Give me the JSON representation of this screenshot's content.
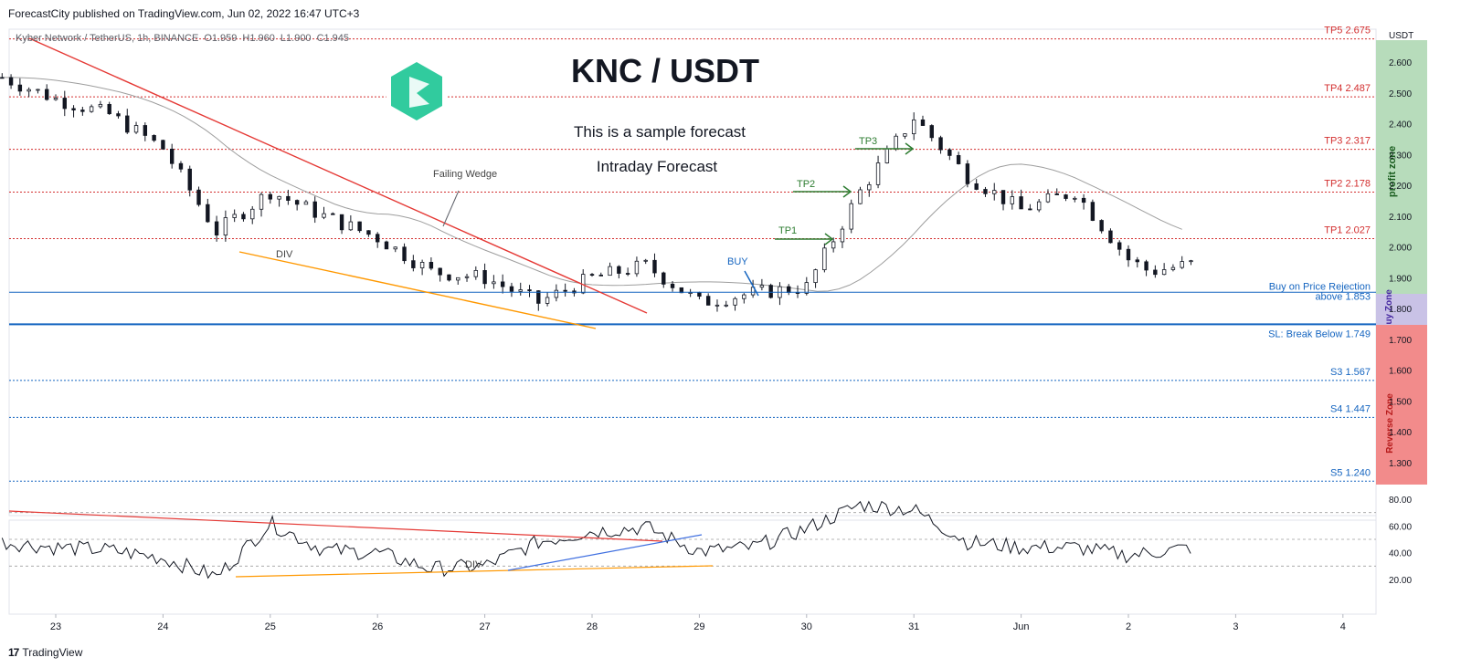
{
  "header": {
    "publisher": "ForecastCity published on TradingView.com, Jun 02, 2022 16:47 UTC+3",
    "symbol_line": "Kyber Network / TetherUS, 1h, BINANCE",
    "ohlc": {
      "o": "O1.959",
      "h": "H1.960",
      "l": "L1.900",
      "c": "C1.945"
    }
  },
  "footer": {
    "brand": "TradingView",
    "logo_glyph": "17"
  },
  "chart_title": "KNC / USDT",
  "subtitle_1": "This is a sample forecast",
  "subtitle_2": "Intraday Forecast",
  "currency": "USDT",
  "colors": {
    "up": "#26a69a",
    "down": "#ef5350",
    "candle": "#131722",
    "tp": "#d32f2f",
    "entry": "#1565c0",
    "profit_zone": "#b7dcbb",
    "buy_zone": "#c9c2e6",
    "reverse_zone": "#f28b8b",
    "wedge_upper": "#e53935",
    "wedge_lower": "#ff9800",
    "arrow": "#2e7d32",
    "rsi": "#131722",
    "logo": "#31cb9e"
  },
  "zones": {
    "profit": "profit zone",
    "buy": "Buy Zone",
    "reverse": "Reverse Zone"
  },
  "price_axis": [
    "2.600",
    "2.500",
    "2.400",
    "2.300",
    "2.200",
    "2.100",
    "2.000",
    "1.900",
    "1.800",
    "1.700",
    "1.600",
    "1.500",
    "1.400",
    "1.300"
  ],
  "rsi_axis": [
    "80.00",
    "60.00",
    "40.00",
    "20.00"
  ],
  "time_axis": [
    "23",
    "24",
    "25",
    "26",
    "27",
    "28",
    "29",
    "30",
    "31",
    "Jun",
    "2",
    "3",
    "4"
  ],
  "levels": [
    {
      "label": "TP5 2.675",
      "price": 2.675
    },
    {
      "label": "TP4 2.487",
      "price": 2.487
    },
    {
      "label": "TP3 2.317",
      "price": 2.317
    },
    {
      "label": "TP2 2.178",
      "price": 2.178
    },
    {
      "label": "TP1 2.027",
      "price": 2.027
    },
    {
      "label": "S3 1.567",
      "price": 1.567
    },
    {
      "label": "S4 1.447",
      "price": 1.447
    },
    {
      "label": "S5 1.240",
      "price": 1.24
    }
  ],
  "entry_label_1": "Buy on Price Rejection",
  "entry_label_2": "above 1.853",
  "entry_price": 1.853,
  "sl_label": "SL: Break Below 1.749",
  "sl_price": 1.749,
  "annotations": {
    "wedge": "Failing Wedge",
    "div_price": "DIV",
    "div_rsi": "DIV",
    "buy": "BUY",
    "tp1": "TP1",
    "tp2": "TP2",
    "tp3": "TP3"
  },
  "chart_data": {
    "type": "line",
    "title": "KNC / USDT",
    "x_labels": [
      "23",
      "24",
      "25",
      "26",
      "27",
      "28",
      "29",
      "30",
      "31",
      "Jun",
      "2"
    ],
    "series": [
      {
        "name": "Kyber Network / TetherUS",
        "x": [
          22.5,
          23,
          23.5,
          24,
          24.5,
          25,
          25.5,
          26,
          26.5,
          27,
          27.5,
          28,
          28.5,
          29,
          29.5,
          30,
          30.5,
          31,
          31.5,
          32,
          32.5,
          33,
          33.2,
          33.6
        ],
        "values": [
          2.55,
          2.48,
          2.43,
          2.32,
          2.05,
          2.18,
          2.1,
          2.03,
          1.92,
          1.9,
          1.82,
          1.9,
          1.94,
          1.82,
          1.85,
          1.87,
          2.18,
          2.42,
          2.23,
          2.12,
          2.18,
          1.96,
          1.92,
          1.945
        ]
      }
    ],
    "moving_average_visible": true,
    "rsi": {
      "x": [
        22.5,
        23,
        23.5,
        24,
        24.5,
        25,
        25.5,
        26,
        26.5,
        27,
        27.5,
        28,
        28.5,
        29,
        29.5,
        30,
        30.5,
        31,
        31.5,
        32,
        32.5,
        33,
        33.6
      ],
      "values": [
        48,
        44,
        42,
        36,
        22,
        62,
        42,
        40,
        28,
        30,
        48,
        56,
        59,
        41,
        44,
        58,
        76,
        72,
        48,
        44,
        44,
        38,
        44
      ],
      "levels": [
        70,
        50,
        30
      ],
      "ylim": [
        10,
        85
      ]
    },
    "ylim": [
      1.22,
      2.69
    ],
    "scale": "linear",
    "grid": true
  }
}
